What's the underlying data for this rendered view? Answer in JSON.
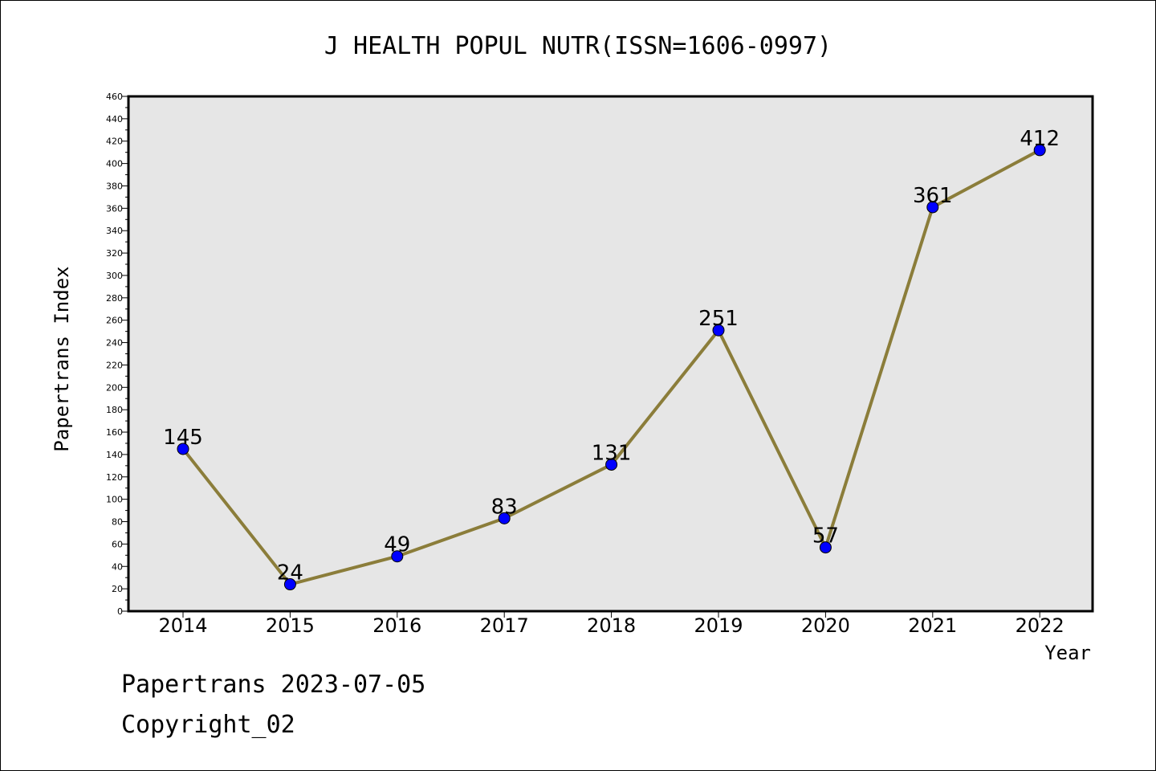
{
  "chart_data": {
    "type": "line",
    "title": "J HEALTH POPUL NUTR(ISSN=1606-0997)",
    "xlabel": "Year",
    "ylabel": "Papertrans Index",
    "categories": [
      "2014",
      "2015",
      "2016",
      "2017",
      "2018",
      "2019",
      "2020",
      "2021",
      "2022"
    ],
    "values": [
      145,
      24,
      49,
      83,
      131,
      251,
      57,
      361,
      412
    ],
    "data_labels": [
      "145",
      "24",
      "49",
      "83",
      "131",
      "251",
      "57",
      "361",
      "412"
    ],
    "ylim": [
      0,
      460
    ],
    "yticks": [
      0,
      20,
      40,
      60,
      80,
      100,
      120,
      140,
      160,
      180,
      200,
      220,
      240,
      260,
      280,
      300,
      320,
      340,
      360,
      380,
      400,
      420,
      440,
      460
    ],
    "ytick_labels": [
      "0",
      "20",
      "40",
      "60",
      "80",
      "100",
      "120",
      "140",
      "160",
      "180",
      "200",
      "220",
      "240",
      "260",
      "280",
      "300",
      "320",
      "340",
      "360",
      "380",
      "400",
      "420",
      "440",
      "460"
    ],
    "grid": false,
    "plot_background": "#e6e6e6",
    "line_color": "#8b7d3a",
    "marker_color": "#0000ff"
  },
  "footer": {
    "date_line": "Papertrans 2023-07-05",
    "copyright_line": "Copyright_02"
  }
}
